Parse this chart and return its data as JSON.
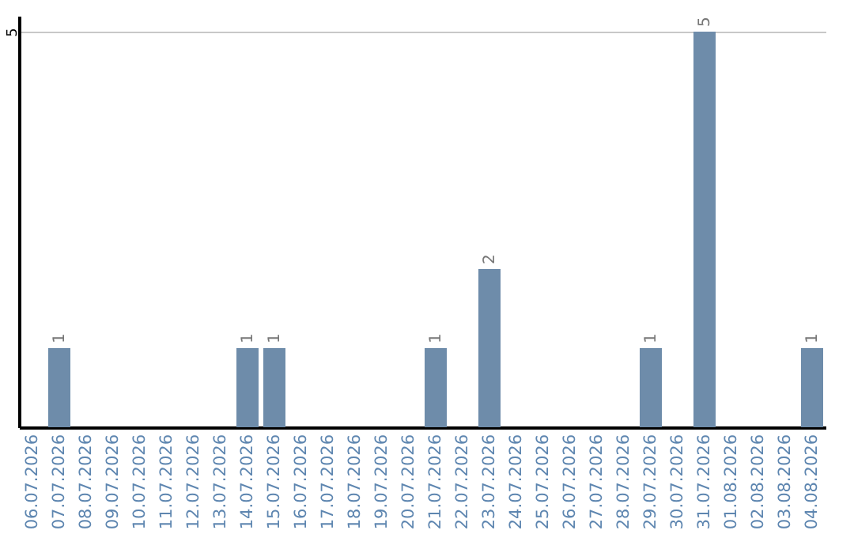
{
  "chart_data": {
    "type": "bar",
    "categories": [
      "06.07.2026",
      "07.07.2026",
      "08.07.2026",
      "09.07.2026",
      "10.07.2026",
      "11.07.2026",
      "12.07.2026",
      "13.07.2026",
      "14.07.2026",
      "15.07.2026",
      "16.07.2026",
      "17.07.2026",
      "18.07.2026",
      "19.07.2026",
      "20.07.2026",
      "21.07.2026",
      "22.07.2026",
      "23.07.2026",
      "24.07.2026",
      "25.07.2026",
      "26.07.2026",
      "27.07.2026",
      "28.07.2026",
      "29.07.2026",
      "30.07.2026",
      "31.07.2026",
      "01.08.2026",
      "02.08.2026",
      "03.08.2026",
      "04.08.2026"
    ],
    "values": [
      0,
      1,
      0,
      0,
      0,
      0,
      0,
      0,
      1,
      1,
      0,
      0,
      0,
      0,
      0,
      1,
      0,
      2,
      0,
      0,
      0,
      0,
      0,
      1,
      0,
      5,
      0,
      0,
      0,
      1
    ],
    "value_labels": [
      null,
      "1",
      null,
      null,
      null,
      null,
      null,
      null,
      "1",
      "1",
      null,
      null,
      null,
      null,
      null,
      "1",
      null,
      "2",
      null,
      null,
      null,
      null,
      null,
      "1",
      null,
      "5",
      null,
      null,
      null,
      "1"
    ],
    "color": "#6e8caa",
    "ylim": [
      0,
      5.2
    ],
    "yticks": [
      5
    ],
    "grid": "y"
  }
}
